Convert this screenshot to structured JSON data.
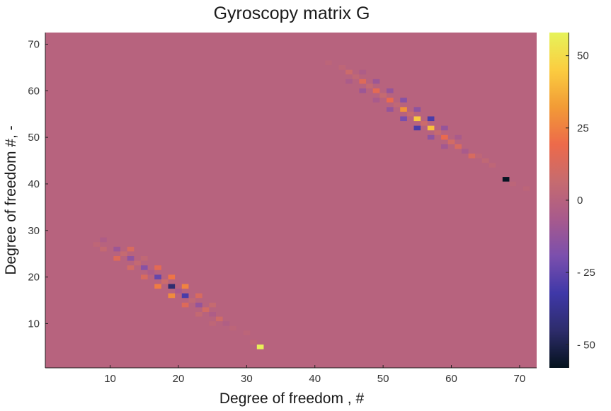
{
  "chart_data": {
    "type": "heatmap",
    "title": "Gyroscopy matrix G",
    "xlabel": "Degree of freedom , #",
    "ylabel": "Degree of freedom #, -",
    "xlim": [
      0.5,
      72.5
    ],
    "ylim": [
      0.5,
      72.5
    ],
    "xticks": [
      10,
      20,
      30,
      40,
      50,
      60,
      70
    ],
    "yticks": [
      10,
      20,
      30,
      40,
      50,
      60,
      70
    ],
    "colorbar": {
      "range": [
        -58,
        58
      ],
      "ticks": [
        50,
        25,
        0,
        -25,
        -50
      ],
      "tick_labels": [
        "50",
        "25",
        "0",
        "- 25",
        "- 50"
      ],
      "colormap": "thermal",
      "stops": [
        "#04121d",
        "#2d2c6b",
        "#3f38a8",
        "#7b4fad",
        "#a85a8c",
        "#c66b6f",
        "#ed6a4a",
        "#f29b36",
        "#fbcd40",
        "#e6f35a"
      ]
    },
    "background_value": 0,
    "cells": [
      {
        "x": 32,
        "y": 5,
        "v": 57
      },
      {
        "x": 68,
        "y": 41,
        "v": -57
      },
      {
        "x": 9,
        "y": 28,
        "v": -4
      },
      {
        "x": 8,
        "y": 27,
        "v": 3
      },
      {
        "x": 9,
        "y": 26,
        "v": 5
      },
      {
        "x": 11,
        "y": 26,
        "v": -10
      },
      {
        "x": 13,
        "y": 26,
        "v": 12
      },
      {
        "x": 12,
        "y": 25,
        "v": 6
      },
      {
        "x": 11,
        "y": 24,
        "v": 14
      },
      {
        "x": 13,
        "y": 24,
        "v": -14
      },
      {
        "x": 14,
        "y": 23,
        "v": 5
      },
      {
        "x": 13,
        "y": 22,
        "v": 10
      },
      {
        "x": 15,
        "y": 22,
        "v": -16
      },
      {
        "x": 15,
        "y": 24,
        "v": 4
      },
      {
        "x": 17,
        "y": 22,
        "v": 16
      },
      {
        "x": 16,
        "y": 21,
        "v": -4
      },
      {
        "x": 15,
        "y": 20,
        "v": 12
      },
      {
        "x": 17,
        "y": 20,
        "v": -24
      },
      {
        "x": 19,
        "y": 20,
        "v": 22
      },
      {
        "x": 18,
        "y": 19,
        "v": 8
      },
      {
        "x": 17,
        "y": 18,
        "v": 24
      },
      {
        "x": 19,
        "y": 18,
        "v": -44
      },
      {
        "x": 21,
        "y": 18,
        "v": 26
      },
      {
        "x": 20,
        "y": 17,
        "v": -6
      },
      {
        "x": 19,
        "y": 16,
        "v": 28
      },
      {
        "x": 21,
        "y": 16,
        "v": -30
      },
      {
        "x": 23,
        "y": 16,
        "v": 12
      },
      {
        "x": 22,
        "y": 15,
        "v": 4
      },
      {
        "x": 21,
        "y": 14,
        "v": 14
      },
      {
        "x": 23,
        "y": 14,
        "v": -12
      },
      {
        "x": 25,
        "y": 14,
        "v": 6
      },
      {
        "x": 24,
        "y": 13,
        "v": 10
      },
      {
        "x": 23,
        "y": 12,
        "v": 5
      },
      {
        "x": 25,
        "y": 12,
        "v": -4
      },
      {
        "x": 26,
        "y": 11,
        "v": 9
      },
      {
        "x": 25,
        "y": 10,
        "v": 3
      },
      {
        "x": 27,
        "y": 10,
        "v": -3
      },
      {
        "x": 28,
        "y": 9,
        "v": 2
      },
      {
        "x": 30,
        "y": 8,
        "v": 2
      },
      {
        "x": 31,
        "y": 6,
        "v": 3
      },
      {
        "x": 42,
        "y": 66,
        "v": 2
      },
      {
        "x": 44,
        "y": 65,
        "v": 3
      },
      {
        "x": 45,
        "y": 64,
        "v": 8
      },
      {
        "x": 47,
        "y": 64,
        "v": -4
      },
      {
        "x": 46,
        "y": 63,
        "v": 4
      },
      {
        "x": 45,
        "y": 62,
        "v": -5
      },
      {
        "x": 47,
        "y": 62,
        "v": 14
      },
      {
        "x": 49,
        "y": 62,
        "v": -10
      },
      {
        "x": 48,
        "y": 61,
        "v": 5
      },
      {
        "x": 47,
        "y": 60,
        "v": -10
      },
      {
        "x": 49,
        "y": 60,
        "v": 16
      },
      {
        "x": 51,
        "y": 60,
        "v": -12
      },
      {
        "x": 50,
        "y": 59,
        "v": 6
      },
      {
        "x": 49,
        "y": 58,
        "v": -6
      },
      {
        "x": 51,
        "y": 58,
        "v": 18
      },
      {
        "x": 53,
        "y": 58,
        "v": -16
      },
      {
        "x": 52,
        "y": 57,
        "v": 4
      },
      {
        "x": 51,
        "y": 56,
        "v": -12
      },
      {
        "x": 53,
        "y": 56,
        "v": 30
      },
      {
        "x": 55,
        "y": 56,
        "v": -14
      },
      {
        "x": 54,
        "y": 55,
        "v": 6
      },
      {
        "x": 53,
        "y": 54,
        "v": -20
      },
      {
        "x": 55,
        "y": 54,
        "v": 44
      },
      {
        "x": 57,
        "y": 54,
        "v": -30
      },
      {
        "x": 56,
        "y": 53,
        "v": 8
      },
      {
        "x": 55,
        "y": 52,
        "v": -30
      },
      {
        "x": 57,
        "y": 52,
        "v": 42
      },
      {
        "x": 59,
        "y": 52,
        "v": -12
      },
      {
        "x": 58,
        "y": 51,
        "v": 6
      },
      {
        "x": 57,
        "y": 50,
        "v": -14
      },
      {
        "x": 59,
        "y": 50,
        "v": 18
      },
      {
        "x": 61,
        "y": 50,
        "v": -6
      },
      {
        "x": 60,
        "y": 49,
        "v": 10
      },
      {
        "x": 59,
        "y": 48,
        "v": -8
      },
      {
        "x": 61,
        "y": 48,
        "v": 12
      },
      {
        "x": 62,
        "y": 47,
        "v": -6
      },
      {
        "x": 63,
        "y": 46,
        "v": 12
      },
      {
        "x": 64,
        "y": 46,
        "v": 3
      },
      {
        "x": 65,
        "y": 45,
        "v": 4
      },
      {
        "x": 66,
        "y": 44,
        "v": 3
      },
      {
        "x": 69,
        "y": 40,
        "v": 2
      },
      {
        "x": 71,
        "y": 39,
        "v": 2
      }
    ]
  }
}
